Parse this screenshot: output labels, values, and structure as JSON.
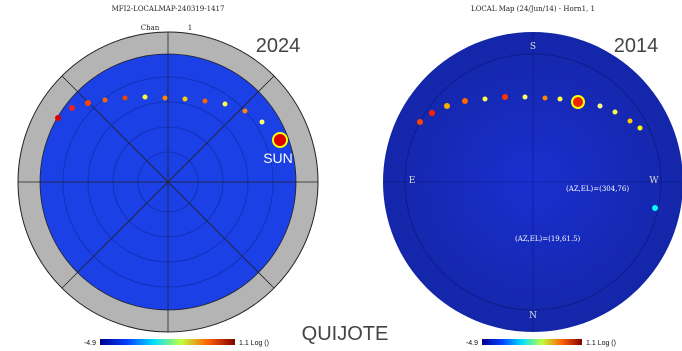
{
  "left": {
    "title": "MFI2-LOCALMAP-240319-1417",
    "channel_label": "Chan",
    "channel_value": "1",
    "year": "2024",
    "sun_label": "SUN",
    "colorbar": {
      "min": "-4.9",
      "max": "1.1 Log ()"
    }
  },
  "right": {
    "title": "LOCAL Map (24/Jun/14) - Horn1, 1",
    "year": "2014",
    "compass": {
      "south": "S",
      "east": "E",
      "west": "W",
      "north": "N"
    },
    "annotations": [
      "(AZ,EL)=(304,76)",
      "(AZ,EL)=(19,61.5)"
    ],
    "colorbar": {
      "min": "-4.9",
      "max": "1.1 Log ()"
    }
  },
  "footer": {
    "brand": "QUIJOTE"
  }
}
